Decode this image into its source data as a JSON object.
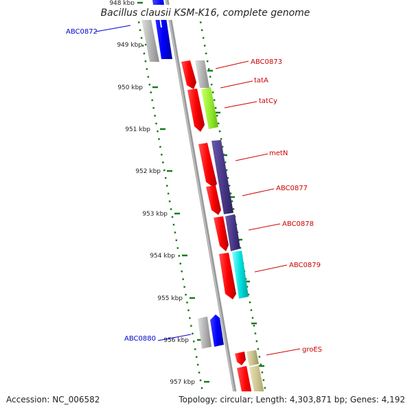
{
  "title": "Bacillus clausii KSM-K16, complete genome",
  "footer": {
    "accession": "Accession: NC_006582",
    "summary": "Topology: circular; Length: 4,303,871 bp; Genes: 4,192"
  },
  "ticks": [
    "948 kbp",
    "949 kbp",
    "950 kbp",
    "951 kbp",
    "952 kbp",
    "953 kbp",
    "954 kbp",
    "955 kbp",
    "956 kbp",
    "957 kbp"
  ],
  "genes": [
    {
      "name": "ABC0872",
      "color": "#0000cc"
    },
    {
      "name": "ABC0873",
      "color": "#cc0000"
    },
    {
      "name": "tatA",
      "color": "#cc0000"
    },
    {
      "name": "tatCy",
      "color": "#cc0000"
    },
    {
      "name": "metN",
      "color": "#cc0000"
    },
    {
      "name": "ABC0877",
      "color": "#cc0000"
    },
    {
      "name": "ABC0878",
      "color": "#cc0000"
    },
    {
      "name": "ABC0879",
      "color": "#cc0000"
    },
    {
      "name": "ABC0880",
      "color": "#0000cc"
    },
    {
      "name": "groES",
      "color": "#cc0000"
    }
  ],
  "colors": {
    "backbone": "#888888",
    "tick": "#1a7a1a",
    "cds_forward": "#ff0000",
    "cds_reverse": "#0000ff",
    "grey_feature": "#b4b4b4",
    "lime": "#99ee33",
    "navy": "#4a3a8a",
    "cyan": "#00e0e0",
    "khaki": "#c8c08a"
  }
}
